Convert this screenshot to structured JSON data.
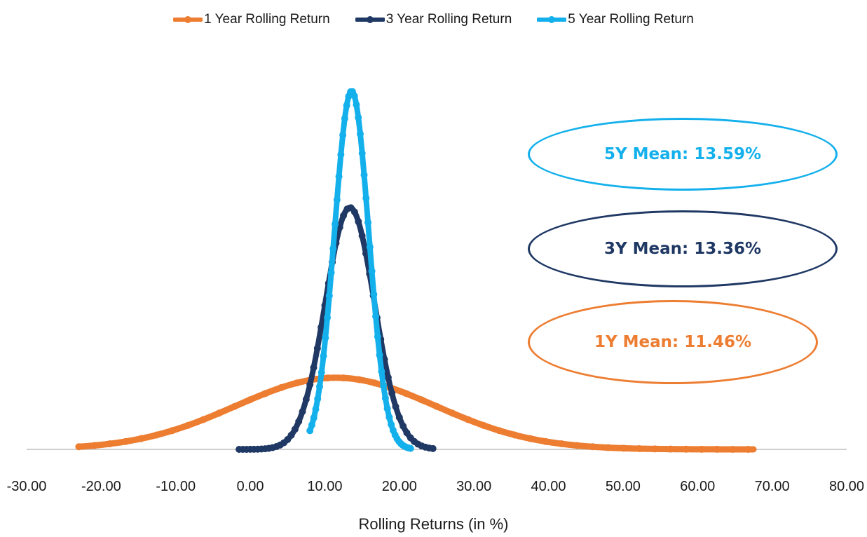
{
  "chart_data": {
    "type": "line",
    "title": "",
    "xlabel": "Rolling Returns (in %)",
    "ylabel": "",
    "xlim": [
      -30,
      80
    ],
    "x_ticks": [
      "-30.00",
      "-20.00",
      "-10.00",
      "0.00",
      "10.00",
      "20.00",
      "30.00",
      "40.00",
      "50.00",
      "60.00",
      "70.00",
      "80.00"
    ],
    "y_axis_visible": false,
    "grid": false,
    "legend_position": "top-center",
    "series": [
      {
        "name": "1 Year Rolling Return",
        "color": "#ED7D31",
        "mean": 11.46,
        "sd": 13.4,
        "peak": 0.2,
        "range": [
          -23,
          67.5
        ]
      },
      {
        "name": "3 Year Rolling Return",
        "color": "#1F3864",
        "mean": 13.36,
        "sd": 3.3,
        "peak": 0.675,
        "range": [
          -1.5,
          24.5
        ]
      },
      {
        "name": "5 Year Rolling Return",
        "color": "#13B0EC",
        "mean": 13.59,
        "sd": 2.3,
        "peak": 1.0,
        "range": [
          8,
          21.5
        ]
      }
    ],
    "annotations": [
      {
        "text": "5Y Mean: 13.59%",
        "color": "#13B0EC",
        "series": "5 Year Rolling Return"
      },
      {
        "text": "3Y Mean: 13.36%",
        "color": "#1F3864",
        "series": "3 Year Rolling Return"
      },
      {
        "text": "1Y Mean: 11.46%",
        "color": "#ED7D31",
        "series": "1 Year Rolling Return"
      }
    ]
  }
}
